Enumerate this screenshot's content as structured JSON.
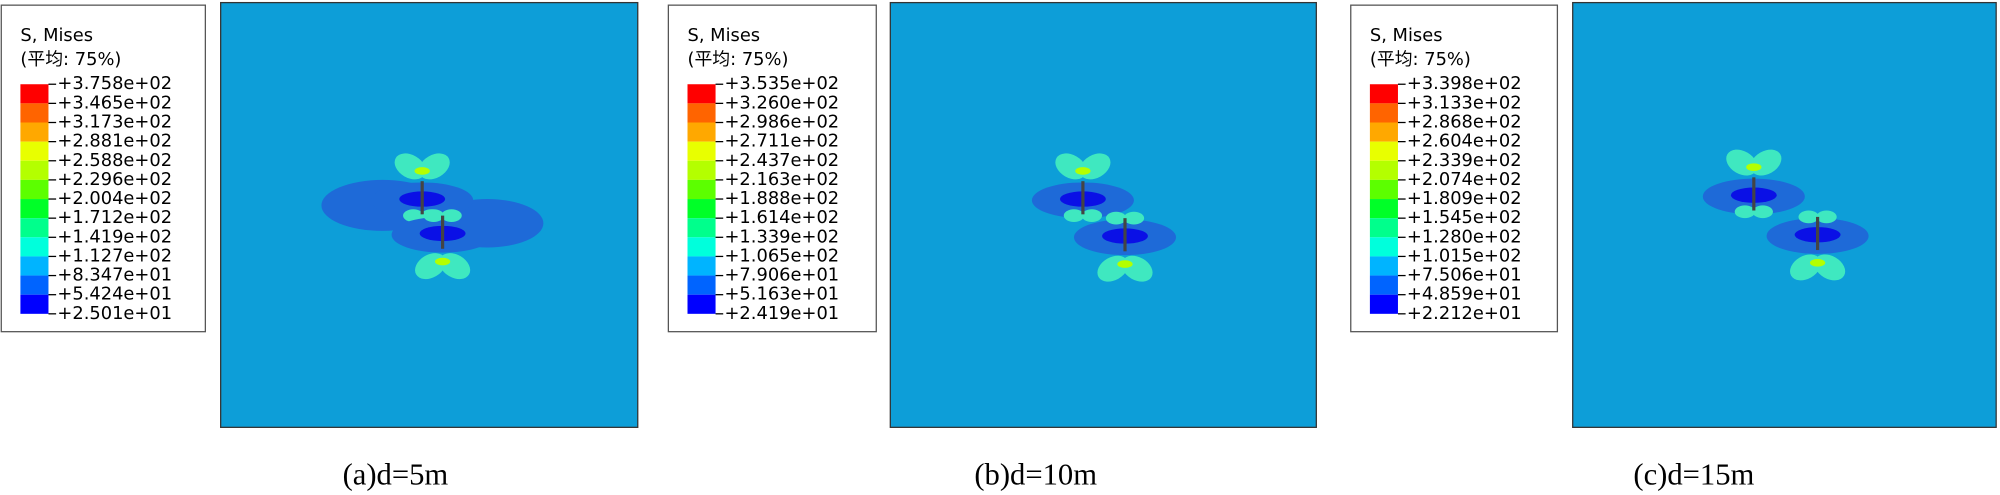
{
  "panels": [
    {
      "legend_title": "S, Mises",
      "legend_subtitle": "(平均: 75%)",
      "legend_labels": [
        "+3.758e+02",
        "+3.465e+02",
        "+3.173e+02",
        "+2.881e+02",
        "+2.588e+02",
        "+2.296e+02",
        "+2.004e+02",
        "+1.712e+02",
        "+1.419e+02",
        "+1.127e+02",
        "+8.347e+01",
        "+5.424e+01",
        "+2.501e+01"
      ],
      "caption": "(a)d=5m"
    },
    {
      "legend_title": "S, Mises",
      "legend_subtitle": "(平均: 75%)",
      "legend_labels": [
        "+3.535e+02",
        "+3.260e+02",
        "+2.986e+02",
        "+2.711e+02",
        "+2.437e+02",
        "+2.163e+02",
        "+1.888e+02",
        "+1.614e+02",
        "+1.339e+02",
        "+1.065e+02",
        "+7.906e+01",
        "+5.163e+01",
        "+2.419e+01"
      ],
      "caption": "(b)d=10m"
    },
    {
      "legend_title": "S, Mises",
      "legend_subtitle": "(平均: 75%)",
      "legend_labels": [
        "+3.398e+02",
        "+3.133e+02",
        "+2.868e+02",
        "+2.604e+02",
        "+2.339e+02",
        "+2.074e+02",
        "+1.809e+02",
        "+1.545e+02",
        "+1.280e+02",
        "+1.015e+02",
        "+7.506e+01",
        "+4.859e+01",
        "+2.212e+01"
      ],
      "caption": "(c)d=15m"
    }
  ]
}
